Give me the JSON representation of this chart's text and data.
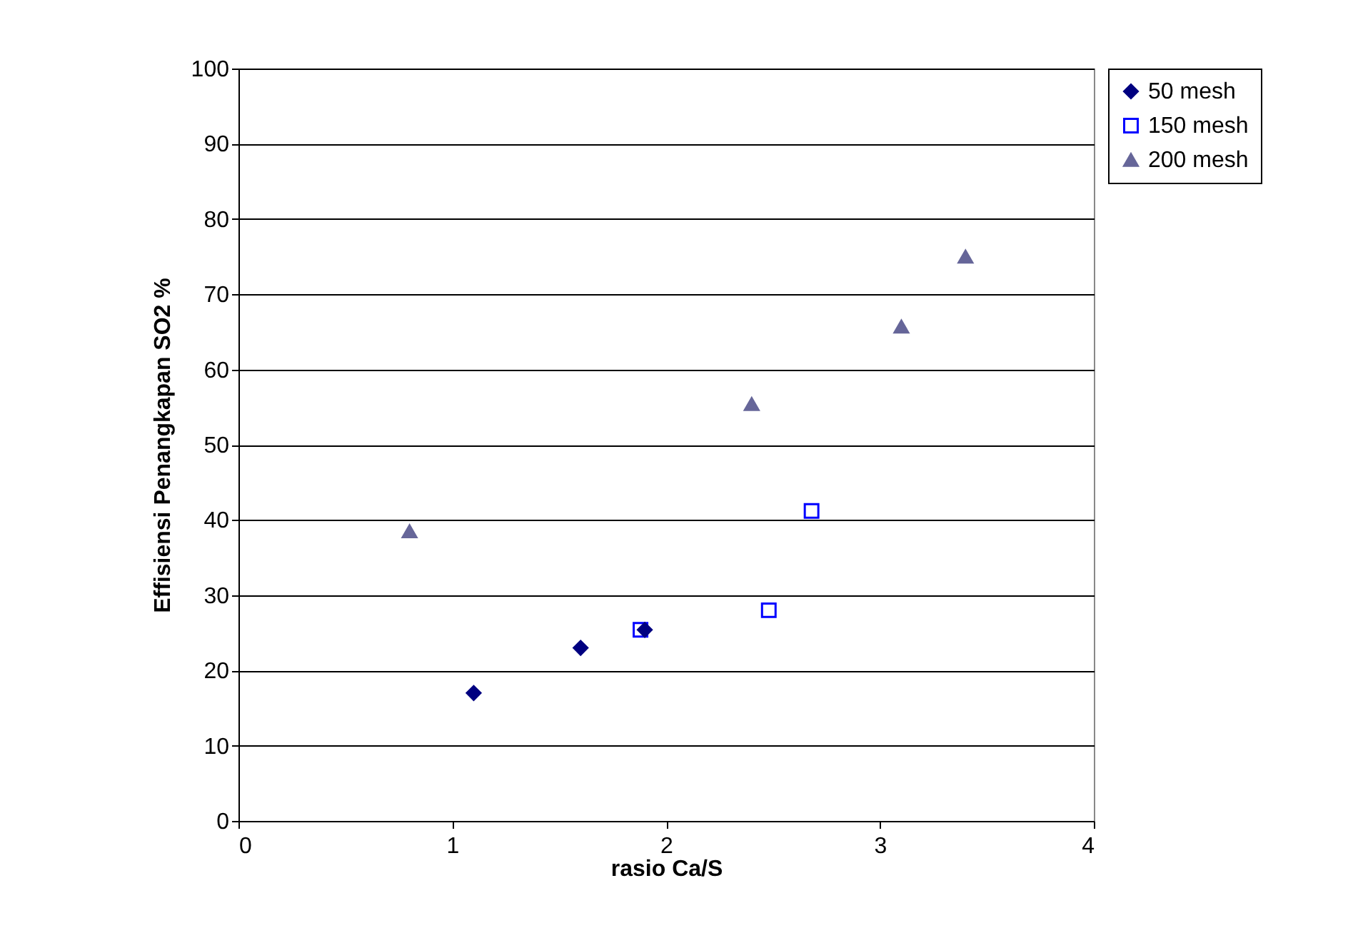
{
  "chart_data": {
    "type": "scatter",
    "xlabel": "rasio Ca/S",
    "ylabel": "Effisiensi Penangkapan SO2 %",
    "xlim": [
      0,
      4
    ],
    "xticks": [
      0,
      1,
      2,
      3,
      4
    ],
    "ylim": [
      0,
      100
    ],
    "yticks": [
      0,
      10,
      20,
      30,
      40,
      50,
      60,
      70,
      80,
      90,
      100
    ],
    "grid": "y",
    "legend": "top right",
    "series": [
      {
        "name": "50 mesh",
        "color": "#000080",
        "marker": "diamond",
        "x": [
          1.1,
          1.6,
          1.9
        ],
        "values": [
          17,
          23,
          25.4
        ]
      },
      {
        "name": "150 mesh",
        "color": "#0000ff",
        "marker": "square",
        "x": [
          1.88,
          2.48,
          2.68
        ],
        "values": [
          25.4,
          28,
          41.2
        ]
      },
      {
        "name": "200 mesh",
        "color": "#666699",
        "marker": "triangle",
        "x": [
          0.8,
          2.4,
          3.1,
          3.4
        ],
        "values": [
          38.5,
          55.4,
          65.7,
          75
        ]
      }
    ]
  }
}
